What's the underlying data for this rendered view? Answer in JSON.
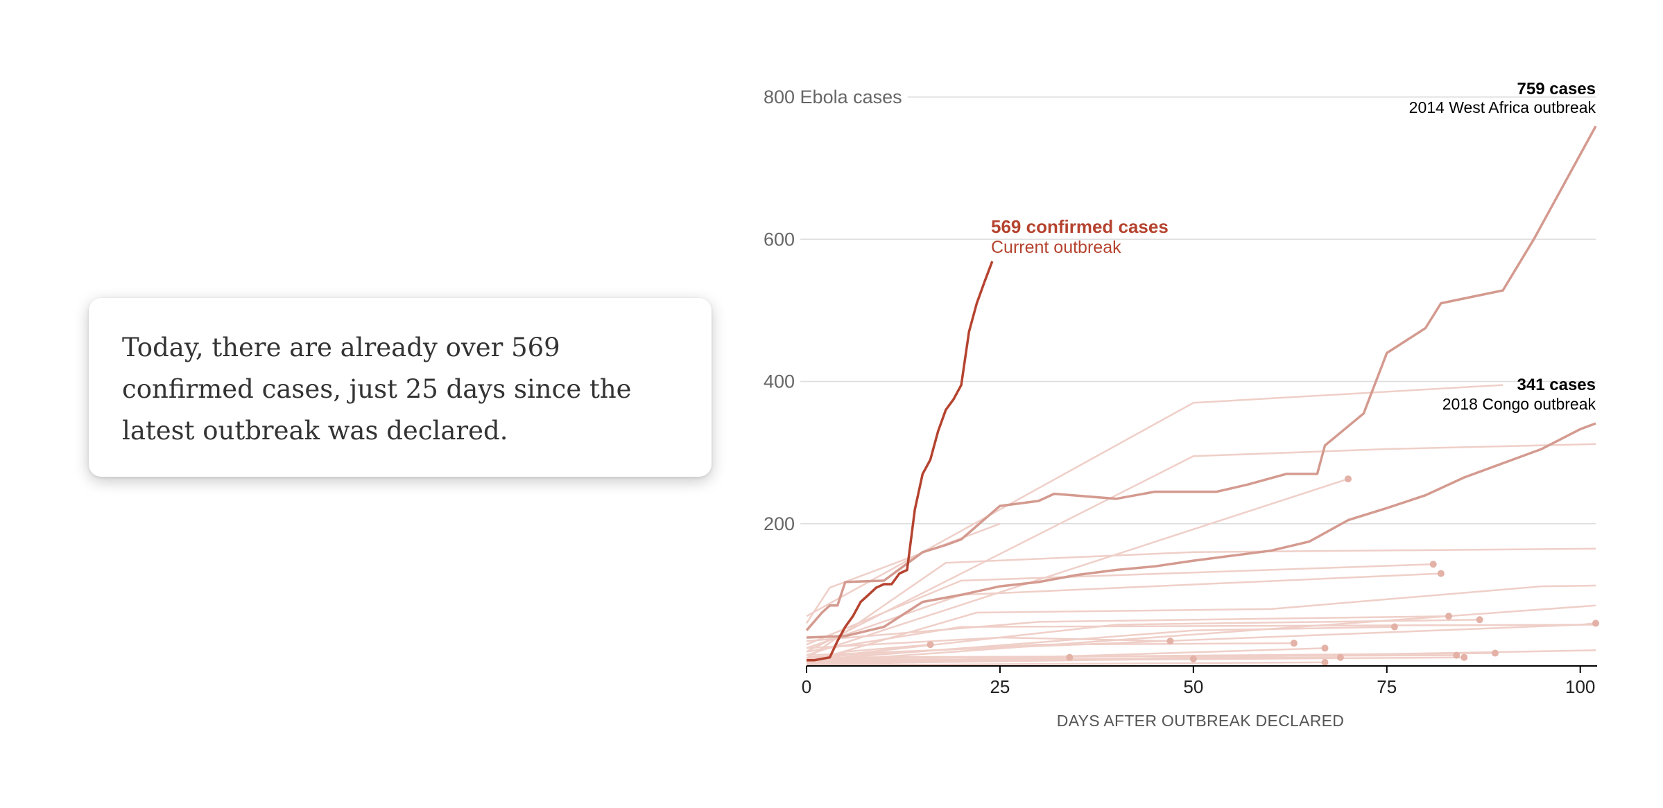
{
  "card": {
    "text": "Today, there are already over 569 confirmed cases, just 25 days since the latest outbreak was declared."
  },
  "colors": {
    "current": "#b5432f",
    "highlight": "#d49a8f",
    "background_lines": "#efcfc8",
    "dots": "#e3b1a6",
    "gridline": "#dddddd"
  },
  "chart_data": {
    "type": "line",
    "ylabel": "Ebola cases",
    "xlabel": "DAYS AFTER OUTBREAK DECLARED",
    "xlim": [
      0,
      102
    ],
    "ylim": [
      0,
      800
    ],
    "y_ticks": [
      200,
      400,
      600,
      800
    ],
    "y_tick_labels": [
      "200",
      "400",
      "600",
      "800 Ebola cases"
    ],
    "x_ticks": [
      0,
      25,
      50,
      75,
      100
    ],
    "x_tick_labels": [
      "0",
      "25",
      "50",
      "75",
      "100"
    ],
    "grid": true,
    "series": [
      {
        "name": "Current outbreak",
        "label_value": "569 confirmed cases",
        "label_name": "Current outbreak",
        "x": [
          0,
          1,
          2,
          3,
          4,
          5,
          6,
          7,
          8,
          9,
          10,
          11,
          12,
          13,
          14,
          15,
          16,
          17,
          18,
          19,
          20,
          21,
          22,
          23,
          24
        ],
        "y": [
          8,
          8,
          10,
          12,
          35,
          55,
          70,
          90,
          100,
          110,
          115,
          115,
          130,
          135,
          220,
          270,
          290,
          330,
          360,
          375,
          395,
          470,
          510,
          540,
          569
        ]
      },
      {
        "name": "2014 West Africa outbreak",
        "label_value": "759 cases",
        "label_name": "2014 West Africa outbreak",
        "x": [
          0,
          2,
          3,
          4,
          5,
          10,
          15,
          18,
          20,
          25,
          30,
          32,
          40,
          45,
          50,
          53,
          57,
          62,
          66,
          67,
          72,
          75,
          80,
          82,
          90,
          94,
          102
        ],
        "y": [
          50,
          75,
          85,
          85,
          118,
          120,
          160,
          170,
          178,
          225,
          232,
          242,
          235,
          245,
          245,
          245,
          255,
          270,
          270,
          310,
          355,
          440,
          475,
          510,
          528,
          600,
          759
        ]
      },
      {
        "name": "2018 Congo outbreak",
        "label_value": "341 cases",
        "label_name": "2018 Congo outbreak",
        "x": [
          0,
          5,
          10,
          15,
          20,
          25,
          30,
          35,
          40,
          45,
          50,
          55,
          60,
          65,
          70,
          75,
          80,
          85,
          90,
          95,
          100,
          102
        ],
        "y": [
          40,
          42,
          55,
          90,
          100,
          112,
          118,
          128,
          135,
          140,
          148,
          155,
          162,
          175,
          205,
          222,
          240,
          265,
          285,
          305,
          333,
          341
        ]
      }
    ],
    "background_series": [
      {
        "x": [
          0,
          50,
          90
        ],
        "y": [
          70,
          370,
          395
        ]
      },
      {
        "x": [
          0,
          50,
          75,
          102
        ],
        "y": [
          20,
          295,
          305,
          312
        ]
      },
      {
        "x": [
          0,
          70
        ],
        "y": [
          15,
          263
        ]
      },
      {
        "x": [
          0,
          3,
          25
        ],
        "y": [
          60,
          110,
          200
        ]
      },
      {
        "x": [
          0,
          18,
          50,
          102
        ],
        "y": [
          10,
          145,
          160,
          165
        ]
      },
      {
        "x": [
          0,
          20,
          81
        ],
        "y": [
          30,
          120,
          143
        ]
      },
      {
        "x": [
          0,
          20,
          82
        ],
        "y": [
          25,
          100,
          130
        ]
      },
      {
        "x": [
          0,
          22,
          60,
          95,
          102
        ],
        "y": [
          5,
          75,
          80,
          112,
          113
        ]
      },
      {
        "x": [
          0,
          30,
          83
        ],
        "y": [
          35,
          62,
          70
        ]
      },
      {
        "x": [
          0,
          40,
          87
        ],
        "y": [
          10,
          58,
          65
        ]
      },
      {
        "x": [
          0,
          20,
          102
        ],
        "y": [
          20,
          55,
          58
        ]
      },
      {
        "x": [
          0,
          50,
          76
        ],
        "y": [
          8,
          50,
          55
        ]
      },
      {
        "x": [
          0,
          102
        ],
        "y": [
          5,
          85
        ]
      },
      {
        "x": [
          0,
          100,
          102
        ],
        "y": [
          15,
          58,
          60
        ]
      },
      {
        "x": [
          0,
          5,
          16
        ],
        "y": [
          3,
          20,
          30
        ]
      },
      {
        "x": [
          0,
          25,
          47
        ],
        "y": [
          25,
          40,
          35
        ]
      },
      {
        "x": [
          0,
          30,
          63
        ],
        "y": [
          12,
          30,
          32
        ]
      },
      {
        "x": [
          0,
          67
        ],
        "y": [
          2,
          25
        ]
      },
      {
        "x": [
          0,
          34
        ],
        "y": [
          5,
          12
        ]
      },
      {
        "x": [
          0,
          50
        ],
        "y": [
          3,
          10
        ]
      },
      {
        "x": [
          0,
          69
        ],
        "y": [
          8,
          12
        ]
      },
      {
        "x": [
          0,
          67
        ],
        "y": [
          1,
          5
        ]
      },
      {
        "x": [
          0,
          84
        ],
        "y": [
          12,
          15
        ]
      },
      {
        "x": [
          0,
          85
        ],
        "y": [
          6,
          12
        ]
      },
      {
        "x": [
          0,
          89
        ],
        "y": [
          10,
          18
        ]
      },
      {
        "x": [
          0,
          102
        ],
        "y": [
          2,
          22
        ]
      }
    ],
    "end_dots": [
      {
        "x": 70,
        "y": 263
      },
      {
        "x": 81,
        "y": 143
      },
      {
        "x": 82,
        "y": 130
      },
      {
        "x": 83,
        "y": 70
      },
      {
        "x": 87,
        "y": 65
      },
      {
        "x": 76,
        "y": 55
      },
      {
        "x": 102,
        "y": 60
      },
      {
        "x": 16,
        "y": 30
      },
      {
        "x": 47,
        "y": 35
      },
      {
        "x": 63,
        "y": 32
      },
      {
        "x": 67,
        "y": 25
      },
      {
        "x": 34,
        "y": 12
      },
      {
        "x": 50,
        "y": 10
      },
      {
        "x": 69,
        "y": 12
      },
      {
        "x": 67,
        "y": 5
      },
      {
        "x": 84,
        "y": 15
      },
      {
        "x": 85,
        "y": 12
      },
      {
        "x": 89,
        "y": 18
      }
    ]
  }
}
